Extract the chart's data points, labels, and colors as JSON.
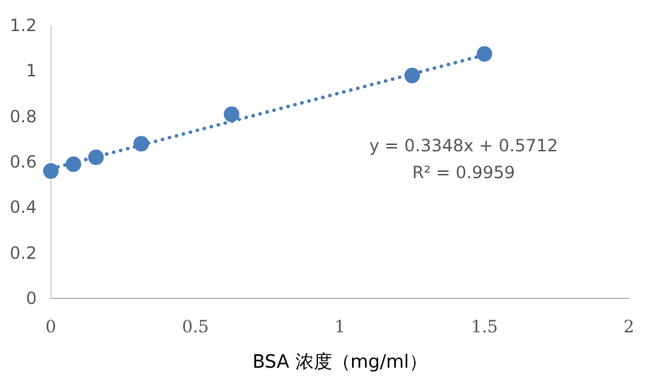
{
  "chart_data": {
    "type": "scatter",
    "xlabel": "BSA 浓度（mg/ml）",
    "x": [
      0,
      0.078,
      0.156,
      0.3125,
      0.625,
      1.25,
      1.5
    ],
    "series": [
      {
        "color": "#4a7ebb",
        "marker": "circle",
        "values": [
          0.56,
          0.59,
          0.62,
          0.68,
          0.81,
          0.98,
          1.075
        ]
      },
      {
        "type": "line",
        "color": "#4a7ebb",
        "line_style": "dotted",
        "marker": "none",
        "x": [
          0,
          1.5
        ],
        "values": [
          0.57,
          1.07
        ]
      }
    ],
    "annotations": [
      "y = 0.3348x + 0.5712",
      "R² = 0.9959"
    ],
    "xlim": [
      0,
      2
    ],
    "xticks": [
      0,
      0.5,
      1,
      1.5,
      2
    ],
    "ylim": [
      0,
      1.2
    ],
    "yticks": [
      0,
      0.2,
      0.4,
      0.6,
      0.8,
      1,
      1.2
    ],
    "grid": false
  }
}
